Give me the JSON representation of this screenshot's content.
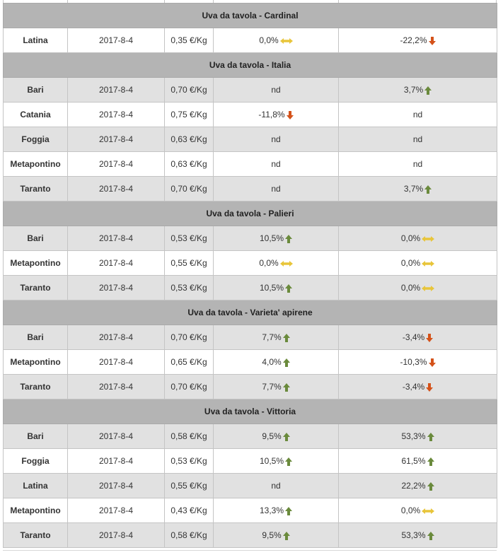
{
  "colors": {
    "up": "#6a8a3c",
    "down": "#d4521a",
    "flat": "#e8c53a",
    "group_bg": "#b4b4b4",
    "alt_row_bg": "#e1e1e1"
  },
  "groups": [
    {
      "title": "Uva da tavola - Cardinal",
      "rows": [
        {
          "market": "Latina",
          "date": "2017-8-4",
          "price": "0,35 €/Kg",
          "var1": {
            "text": "0,0%",
            "trend": "flat"
          },
          "var2": {
            "text": "-22,2%",
            "trend": "down"
          }
        }
      ]
    },
    {
      "title": "Uva da tavola - Italia",
      "rows": [
        {
          "market": "Bari",
          "date": "2017-8-4",
          "price": "0,70 €/Kg",
          "var1": {
            "text": "nd",
            "trend": ""
          },
          "var2": {
            "text": "3,7%",
            "trend": "up"
          }
        },
        {
          "market": "Catania",
          "date": "2017-8-4",
          "price": "0,75 €/Kg",
          "var1": {
            "text": "-11,8%",
            "trend": "down"
          },
          "var2": {
            "text": "nd",
            "trend": ""
          }
        },
        {
          "market": "Foggia",
          "date": "2017-8-4",
          "price": "0,63 €/Kg",
          "var1": {
            "text": "nd",
            "trend": ""
          },
          "var2": {
            "text": "nd",
            "trend": ""
          }
        },
        {
          "market": "Metapontino",
          "date": "2017-8-4",
          "price": "0,63 €/Kg",
          "var1": {
            "text": "nd",
            "trend": ""
          },
          "var2": {
            "text": "nd",
            "trend": ""
          }
        },
        {
          "market": "Taranto",
          "date": "2017-8-4",
          "price": "0,70 €/Kg",
          "var1": {
            "text": "nd",
            "trend": ""
          },
          "var2": {
            "text": "3,7%",
            "trend": "up"
          }
        }
      ]
    },
    {
      "title": "Uva da tavola - Palieri",
      "rows": [
        {
          "market": "Bari",
          "date": "2017-8-4",
          "price": "0,53 €/Kg",
          "var1": {
            "text": "10,5%",
            "trend": "up"
          },
          "var2": {
            "text": "0,0%",
            "trend": "flat"
          }
        },
        {
          "market": "Metapontino",
          "date": "2017-8-4",
          "price": "0,55 €/Kg",
          "var1": {
            "text": "0,0%",
            "trend": "flat"
          },
          "var2": {
            "text": "0,0%",
            "trend": "flat"
          }
        },
        {
          "market": "Taranto",
          "date": "2017-8-4",
          "price": "0,53 €/Kg",
          "var1": {
            "text": "10,5%",
            "trend": "up"
          },
          "var2": {
            "text": "0,0%",
            "trend": "flat"
          }
        }
      ]
    },
    {
      "title": "Uva da tavola - Varieta' apirene",
      "rows": [
        {
          "market": "Bari",
          "date": "2017-8-4",
          "price": "0,70 €/Kg",
          "var1": {
            "text": "7,7%",
            "trend": "up"
          },
          "var2": {
            "text": "-3,4%",
            "trend": "down"
          }
        },
        {
          "market": "Metapontino",
          "date": "2017-8-4",
          "price": "0,65 €/Kg",
          "var1": {
            "text": "4,0%",
            "trend": "up"
          },
          "var2": {
            "text": "-10,3%",
            "trend": "down"
          }
        },
        {
          "market": "Taranto",
          "date": "2017-8-4",
          "price": "0,70 €/Kg",
          "var1": {
            "text": "7,7%",
            "trend": "up"
          },
          "var2": {
            "text": "-3,4%",
            "trend": "down"
          }
        }
      ]
    },
    {
      "title": "Uva da tavola - Vittoria",
      "rows": [
        {
          "market": "Bari",
          "date": "2017-8-4",
          "price": "0,58 €/Kg",
          "var1": {
            "text": "9,5%",
            "trend": "up"
          },
          "var2": {
            "text": "53,3%",
            "trend": "up"
          }
        },
        {
          "market": "Foggia",
          "date": "2017-8-4",
          "price": "0,53 €/Kg",
          "var1": {
            "text": "10,5%",
            "trend": "up"
          },
          "var2": {
            "text": "61,5%",
            "trend": "up"
          }
        },
        {
          "market": "Latina",
          "date": "2017-8-4",
          "price": "0,55 €/Kg",
          "var1": {
            "text": "nd",
            "trend": ""
          },
          "var2": {
            "text": "22,2%",
            "trend": "up"
          }
        },
        {
          "market": "Metapontino",
          "date": "2017-8-4",
          "price": "0,43 €/Kg",
          "var1": {
            "text": "13,3%",
            "trend": "up"
          },
          "var2": {
            "text": "0,0%",
            "trend": "flat"
          }
        },
        {
          "market": "Taranto",
          "date": "2017-8-4",
          "price": "0,58 €/Kg",
          "var1": {
            "text": "9,5%",
            "trend": "up"
          },
          "var2": {
            "text": "53,3%",
            "trend": "up"
          }
        }
      ]
    }
  ]
}
